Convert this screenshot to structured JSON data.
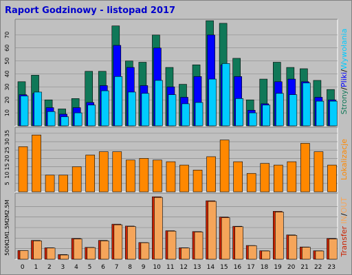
{
  "title": "Raport Godzinowy -  listopad 2017",
  "colors": {
    "background": "#ffffff",
    "frame": "#c0c0c0",
    "panel": "#c0c0c0",
    "grid": "#808080",
    "strony": "#107858",
    "pliki": "#0000ff",
    "wywolania": "#00ccff",
    "lokalizacje": "#ff8800",
    "transfer_in": "#cc2200",
    "transfer_out": "#f5a55a",
    "slash": "#000000",
    "title": "#0000cc"
  },
  "side_labels": {
    "top": [
      {
        "text": "Strony",
        "color": "#107858"
      },
      {
        "text": "/",
        "color": "#000000"
      },
      {
        "text": "Pliki",
        "color": "#0000ff"
      },
      {
        "text": "/",
        "color": "#000000"
      },
      {
        "text": "Wywołania",
        "color": "#00ccff"
      }
    ],
    "middle": [
      {
        "text": "Lokalizacje",
        "color": "#ff8800"
      }
    ],
    "bottom": [
      {
        "text": "Transfer",
        "color": "#cc2200"
      },
      {
        "text": " IN",
        "color": "#f5a55a"
      },
      {
        "text": "/",
        "color": "#000000"
      },
      {
        "text": "OUT",
        "color": "#f5a55a"
      }
    ]
  },
  "chart_data": [
    {
      "type": "bar",
      "categories": [
        "0",
        "1",
        "2",
        "3",
        "4",
        "5",
        "6",
        "7",
        "8",
        "9",
        "10",
        "11",
        "12",
        "13",
        "14",
        "15",
        "16",
        "17",
        "18",
        "19",
        "20",
        "21",
        "22",
        "23"
      ],
      "yticks": [
        "10",
        "20",
        "30",
        "40",
        "50",
        "60",
        "70"
      ],
      "ylim": [
        0,
        80
      ],
      "series": [
        {
          "name": "Strony",
          "values": [
            34,
            39,
            20,
            13,
            21,
            42,
            42,
            77,
            50,
            49,
            70,
            45,
            32,
            47,
            81,
            79,
            52,
            20,
            36,
            49,
            45,
            44,
            35,
            28
          ]
        },
        {
          "name": "Pliki",
          "values": [
            24,
            25,
            14,
            9,
            14,
            18,
            31,
            62,
            45,
            31,
            60,
            30,
            22,
            38,
            70,
            47,
            38,
            12,
            17,
            34,
            36,
            34,
            22,
            20
          ]
        },
        {
          "name": "Wywołania",
          "values": [
            23,
            26,
            11,
            7,
            10,
            16,
            27,
            38,
            26,
            25,
            35,
            24,
            17,
            18,
            36,
            48,
            21,
            10,
            16,
            25,
            24,
            33,
            19,
            19
          ]
        }
      ]
    },
    {
      "type": "bar",
      "categories": [
        "0",
        "1",
        "2",
        "3",
        "4",
        "5",
        "6",
        "7",
        "8",
        "9",
        "10",
        "11",
        "12",
        "13",
        "14",
        "15",
        "16",
        "17",
        "18",
        "19",
        "20",
        "21",
        "22",
        "23"
      ],
      "yticks": [
        "5",
        "10",
        "15",
        "20",
        "25",
        "30",
        "35"
      ],
      "ylim": [
        0,
        37
      ],
      "series": [
        {
          "name": "Lokalizacje",
          "values": [
            27,
            34,
            10,
            10,
            15,
            22,
            24,
            24,
            19,
            20,
            19,
            18,
            16,
            13,
            21,
            31,
            18,
            11,
            17,
            16,
            18,
            29,
            24,
            16
          ]
        }
      ]
    },
    {
      "type": "bar",
      "categories": [
        "0",
        "1",
        "2",
        "3",
        "4",
        "5",
        "6",
        "7",
        "8",
        "9",
        "10",
        "11",
        "12",
        "13",
        "14",
        "15",
        "16",
        "17",
        "18",
        "19",
        "20",
        "21",
        "22",
        "23"
      ],
      "yticks": [
        "500K",
        "1M",
        "1.5M",
        "2M",
        "2.5M"
      ],
      "ylim": [
        0,
        3000000
      ],
      "series": [
        {
          "name": "IN",
          "values": [
            410000,
            890000,
            540000,
            220000,
            980000,
            560000,
            890000,
            1660000,
            1570000,
            790000,
            2960000,
            1350000,
            540000,
            1310000,
            2770000,
            2000000,
            1560000,
            650000,
            400000,
            2270000,
            1150000,
            580000,
            400000,
            980000
          ]
        },
        {
          "name": "OUT",
          "values": [
            410000,
            870000,
            530000,
            200000,
            960000,
            550000,
            870000,
            1630000,
            1550000,
            780000,
            2930000,
            1330000,
            530000,
            1290000,
            2740000,
            1970000,
            1540000,
            640000,
            390000,
            2240000,
            1130000,
            570000,
            390000,
            960000
          ]
        }
      ]
    }
  ]
}
